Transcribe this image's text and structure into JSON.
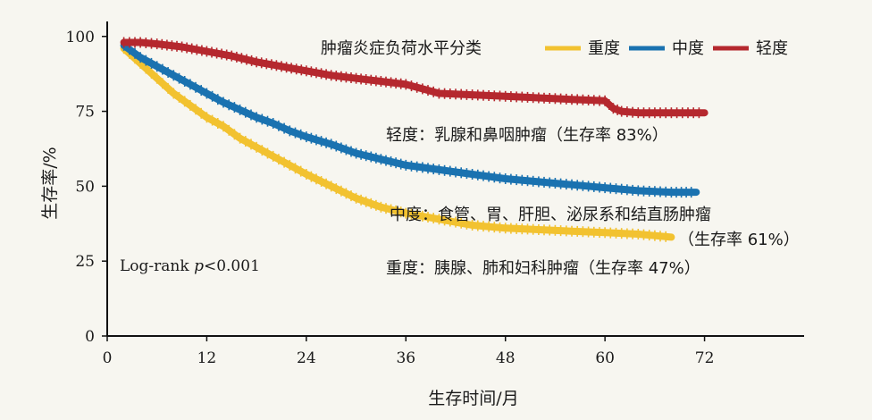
{
  "chart_data": {
    "type": "line",
    "xlabel": "生存时间/月",
    "ylabel": "生存率/%",
    "xlim": [
      0,
      84
    ],
    "ylim": [
      0,
      105
    ],
    "x_ticks": [
      0,
      12,
      24,
      36,
      48,
      60,
      72
    ],
    "y_ticks": [
      0,
      25,
      50,
      75,
      100
    ],
    "grid": false,
    "legend": {
      "title": "肿瘤炎症负荷水平分类",
      "placement": "top-right"
    },
    "series": [
      {
        "name": "重度",
        "color": "#f2c230",
        "x": [
          2,
          4,
          6,
          8,
          10,
          12,
          14,
          16,
          18,
          20,
          22,
          24,
          27,
          30,
          33,
          36,
          40,
          44,
          48,
          52,
          56,
          60,
          64,
          66,
          68
        ],
        "y": [
          96,
          91,
          86,
          81,
          77,
          73,
          70,
          66,
          63,
          60,
          57,
          54,
          50,
          46,
          43,
          41,
          39,
          37,
          36,
          35.5,
          35,
          34.5,
          34,
          33.5,
          33
        ]
      },
      {
        "name": "中度",
        "color": "#1a72b0",
        "x": [
          2,
          4,
          6,
          8,
          10,
          12,
          14,
          16,
          18,
          20,
          22,
          24,
          27,
          30,
          33,
          36,
          40,
          44,
          48,
          52,
          56,
          60,
          64,
          68,
          71
        ],
        "y": [
          97,
          93,
          90,
          87,
          84,
          81,
          78,
          75.5,
          73,
          71,
          68.5,
          66.5,
          64,
          61,
          59,
          57,
          55.5,
          54,
          52.5,
          51.5,
          50.5,
          49.5,
          48.5,
          48,
          48
        ]
      },
      {
        "name": "轻度",
        "color": "#b5282e",
        "x": [
          2,
          4,
          6,
          9,
          12,
          15,
          18,
          21,
          24,
          27,
          30,
          33,
          36,
          38,
          40,
          44,
          48,
          52,
          56,
          60,
          61,
          62,
          64,
          68,
          72
        ],
        "y": [
          98,
          98,
          97.5,
          96.5,
          95,
          93.5,
          91.5,
          90,
          88.5,
          87,
          86,
          85,
          84,
          82.5,
          81,
          80.5,
          80,
          79.5,
          79,
          78.5,
          76,
          75,
          74.5,
          74.5,
          74.5
        ]
      }
    ],
    "annotations": {
      "light": "轻度：乳腺和鼻咽肿瘤（生存率 83%）",
      "moderate_line1": "中度：食管、胃、肝胆、泌尿系和结直肠肿瘤",
      "moderate_line2": "（生存率 61%）",
      "severe": "重度：胰腺、肺和妇科肿瘤（生存率 47%）",
      "logrank_prefix": "Log-rank ",
      "logrank_p": "p",
      "logrank_value": "<0.001"
    }
  }
}
